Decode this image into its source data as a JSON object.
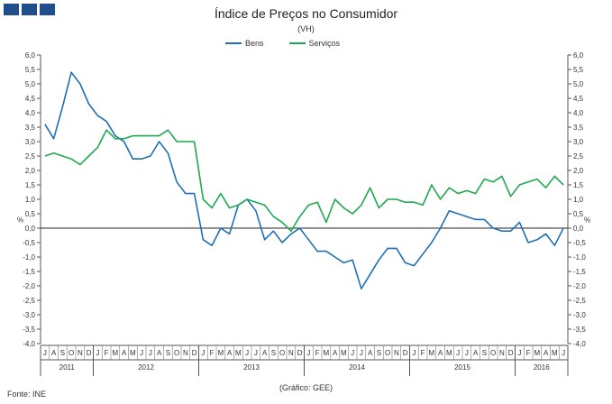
{
  "chart_data": {
    "type": "line",
    "title": "Índice de Preços no Consumidor",
    "subtitle": "(VH)",
    "ylabel_left": "%",
    "ylabel_right": "%",
    "ylim": [
      -4.0,
      6.0
    ],
    "ytick_labels": [
      "6,0",
      "5,5",
      "5,0",
      "4,5",
      "4,0",
      "3,5",
      "3,0",
      "2,5",
      "2,0",
      "1,5",
      "1,0",
      "0,5",
      "0,0",
      "-0,5",
      "-1,0",
      "-1,5",
      "-2,0",
      "-2,5",
      "-3,0",
      "-3,5",
      "-4,0"
    ],
    "month_labels": [
      "J",
      "A",
      "S",
      "O",
      "N",
      "D",
      "J",
      "F",
      "M",
      "A",
      "M",
      "J",
      "J",
      "A",
      "S",
      "O",
      "N",
      "D",
      "J",
      "F",
      "M",
      "A",
      "M",
      "J",
      "J",
      "A",
      "S",
      "O",
      "N",
      "D",
      "J",
      "F",
      "M",
      "A",
      "M",
      "J",
      "J",
      "A",
      "S",
      "O",
      "N",
      "D",
      "J",
      "F",
      "M",
      "A",
      "M",
      "J",
      "J",
      "A",
      "S",
      "O",
      "N",
      "D",
      "J",
      "F",
      "M",
      "A",
      "M",
      "J"
    ],
    "years": [
      {
        "label": "2011",
        "start": 0,
        "end": 5
      },
      {
        "label": "2012",
        "start": 6,
        "end": 17
      },
      {
        "label": "2013",
        "start": 18,
        "end": 29
      },
      {
        "label": "2014",
        "start": 30,
        "end": 41
      },
      {
        "label": "2015",
        "start": 42,
        "end": 53
      },
      {
        "label": "2016",
        "start": 54,
        "end": 59
      }
    ],
    "series": [
      {
        "name": "Bens",
        "color": "#1f6fb2",
        "values": [
          3.6,
          3.1,
          4.2,
          5.4,
          5.0,
          4.3,
          3.9,
          3.7,
          3.2,
          3.0,
          2.4,
          2.4,
          2.5,
          3.0,
          2.6,
          1.6,
          1.2,
          1.2,
          -0.4,
          -0.6,
          0.0,
          -0.2,
          0.8,
          1.0,
          0.6,
          -0.4,
          -0.1,
          -0.5,
          -0.2,
          0.0,
          -0.4,
          -0.8,
          -0.8,
          -1.0,
          -1.2,
          -1.1,
          -2.1,
          -1.6,
          -1.1,
          -0.7,
          -0.7,
          -1.2,
          -1.3,
          -0.9,
          -0.5,
          0.0,
          0.6,
          0.5,
          0.4,
          0.3,
          0.3,
          0.0,
          -0.1,
          -0.1,
          0.2,
          -0.5,
          -0.4,
          -0.2,
          -0.6,
          0.0
        ]
      },
      {
        "name": "Serviços",
        "color": "#1fa84f",
        "values": [
          2.5,
          2.6,
          2.5,
          2.4,
          2.2,
          2.5,
          2.8,
          3.4,
          3.1,
          3.1,
          3.2,
          3.2,
          3.2,
          3.2,
          3.4,
          3.0,
          3.0,
          3.0,
          1.0,
          0.7,
          1.2,
          0.7,
          0.8,
          1.0,
          0.9,
          0.8,
          0.4,
          0.2,
          -0.1,
          0.4,
          0.8,
          0.9,
          0.2,
          1.0,
          0.7,
          0.5,
          0.8,
          1.4,
          0.7,
          1.0,
          1.0,
          0.9,
          0.9,
          0.8,
          1.5,
          1.0,
          1.4,
          1.2,
          1.3,
          1.2,
          1.7,
          1.6,
          1.8,
          1.1,
          1.5,
          1.6,
          1.7,
          1.4,
          1.8,
          1.5
        ]
      }
    ]
  },
  "header": {
    "logo_icon": "ine-logo-icon"
  },
  "footer": {
    "source": "Fonte: INE",
    "credit": "(Gráfico: GEE)"
  }
}
